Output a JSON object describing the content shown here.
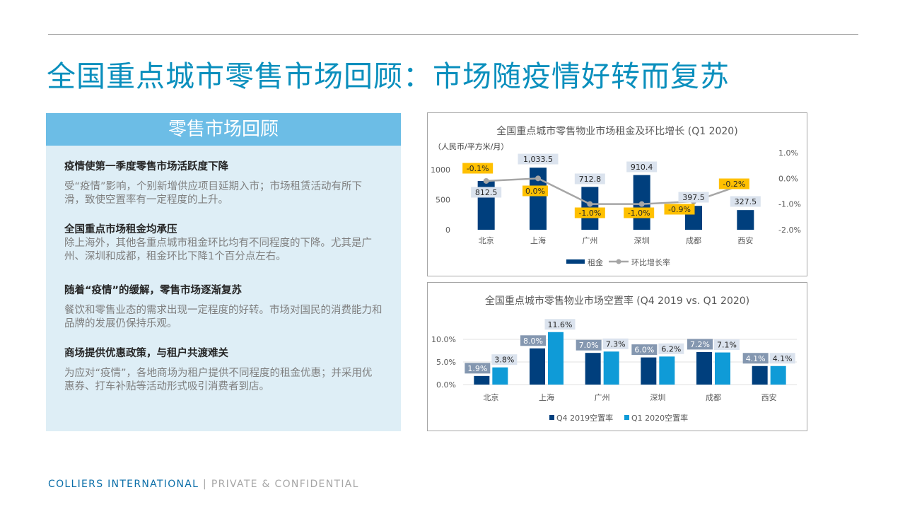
{
  "title": "全国重点城市零售市场回顾：市场随疫情好转而复苏",
  "panel": {
    "header": "零售市场回顾",
    "points": [
      {
        "title": "疫情使第一季度零售市场活跃度下降",
        "text": "受“疫情”影响，个别新增供应项目延期入市；市场租赁活动有所下滑，致使空置率有一定程度的上升。"
      },
      {
        "title": "全国重点市场租金均承压",
        "text": "除上海外，其他各重点城市租金环比均有不同程度的下降。尤其是广州、深圳和成都，租金环比下降1个百分点左右。"
      },
      {
        "title": "随着“疫情”的缓解，零售市场逐渐复苏",
        "text": "餐饮和零售业态的需求出现一定程度的好转。市场对国民的消费能力和品牌的发展仍保持乐观。"
      },
      {
        "title": "商场提供优惠政策，与租户共渡难关",
        "text": "为应对“疫情”，各地商场为租户提供不同程度的租金优惠；并采用优惠券、打车补贴等活动形式吸引消费者到店。"
      }
    ]
  },
  "footer": {
    "brand": "COLLIERS INTERNATIONAL",
    "separator": "|",
    "confidential": "PRIVATE & CONFIDENTIAL"
  },
  "colors": {
    "dark_blue": "#003f7d",
    "light_blue": "#0f9bd7",
    "grey_line": "#a6a6a6",
    "yellow_label": "#ffc000",
    "label_bg": "#dbe3ee"
  },
  "chart_data": [
    {
      "type": "bar",
      "title": "全国重点城市零售物业市场租金及环比增长 (Q1 2020)",
      "ylabel": "（人民币/平方米/月）",
      "categories": [
        "北京",
        "上海",
        "广州",
        "深圳",
        "成都",
        "西安"
      ],
      "series": [
        {
          "name": "租金",
          "type": "bar",
          "axis": "left",
          "values": [
            812.5,
            1033.5,
            712.8,
            910.4,
            397.5,
            327.5
          ],
          "labels": [
            "812.5",
            "1,033.5",
            "712.8",
            "910.4",
            "397.5",
            "327.5"
          ]
        },
        {
          "name": "环比增长率",
          "type": "line",
          "axis": "right",
          "values": [
            -0.1,
            0.0,
            -1.0,
            -1.0,
            -0.9,
            -0.2
          ],
          "labels": [
            "-0.1%",
            "0.0%",
            "-1.0%",
            "-1.0%",
            "-0.9%",
            "-0.2%"
          ]
        }
      ],
      "y_left": {
        "range": [
          0,
          1000
        ],
        "ticks": [
          0,
          500,
          1000
        ],
        "tick_labels": [
          "0",
          "500",
          "1000"
        ]
      },
      "y_right": {
        "range": [
          -2.0,
          1.0
        ],
        "ticks": [
          1.0,
          0.0,
          -1.0,
          -2.0
        ],
        "tick_labels": [
          "1.0%",
          "0.0%",
          "-1.0%",
          "-2.0%"
        ]
      },
      "grid": false,
      "legend": "bottom"
    },
    {
      "type": "bar",
      "title": "全国重点城市零售物业市场空置率 (Q4 2019 vs. Q1 2020)",
      "categories": [
        "北京",
        "上海",
        "广州",
        "深圳",
        "成都",
        "西安"
      ],
      "series": [
        {
          "name": "Q4 2019空置率",
          "values": [
            1.9,
            8.0,
            7.0,
            6.0,
            7.2,
            4.1
          ],
          "labels": [
            "1.9%",
            "8.0%",
            "7.0%",
            "6.0%",
            "7.2%",
            "4.1%"
          ]
        },
        {
          "name": "Q1 2020空置率",
          "values": [
            3.8,
            11.6,
            7.3,
            6.2,
            7.1,
            4.1
          ],
          "labels": [
            "3.8%",
            "11.6%",
            "7.3%",
            "6.2%",
            "7.1%",
            "4.1%"
          ]
        }
      ],
      "y": {
        "range": [
          0,
          10.0
        ],
        "ticks": [
          0,
          5.0,
          10.0
        ],
        "tick_labels": [
          "0.0%",
          "5.0%",
          "10.0%"
        ]
      },
      "grid": true,
      "legend": "bottom"
    }
  ]
}
